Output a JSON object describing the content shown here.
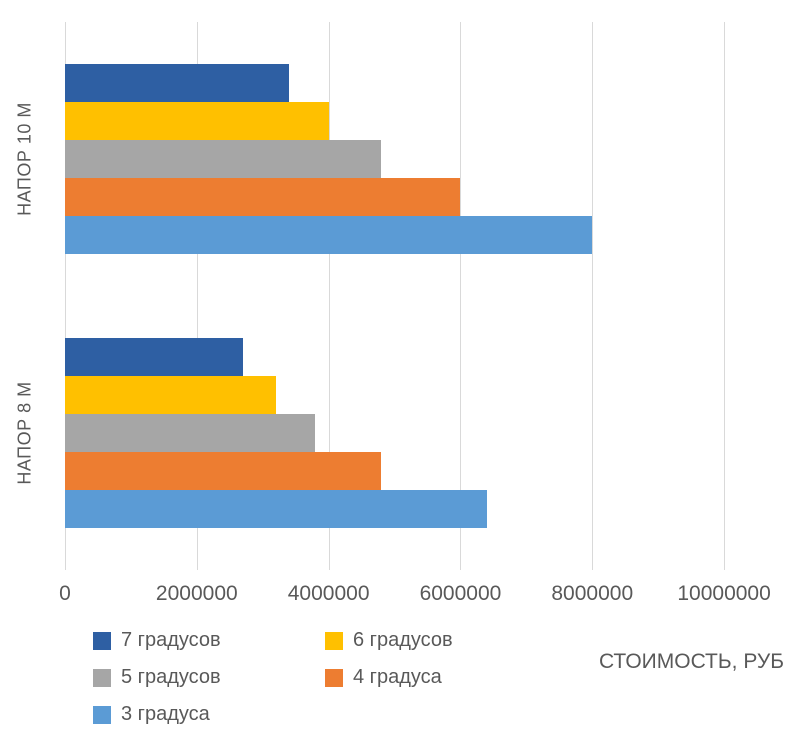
{
  "chart_data": {
    "type": "bar",
    "orientation": "horizontal",
    "title": "",
    "xlabel": "СТОИМОСТЬ, РУБ",
    "ylabel": "",
    "categories": [
      "НАПОР 10 М",
      "НАПОР 8 М"
    ],
    "series": [
      {
        "name": "7 градусов",
        "color": "#2e5fa3",
        "values": [
          3400000,
          2700000
        ]
      },
      {
        "name": "6 градусов",
        "color": "#ffc000",
        "values": [
          4000000,
          3200000
        ]
      },
      {
        "name": "5 градусов",
        "color": "#a6a6a6",
        "values": [
          4800000,
          3800000
        ]
      },
      {
        "name": "4 градуса",
        "color": "#ed7d31",
        "values": [
          6000000,
          4800000
        ]
      },
      {
        "name": "3 градуса",
        "color": "#5b9bd5",
        "values": [
          8000000,
          6400000
        ]
      }
    ],
    "xlim": [
      0,
      11000000
    ],
    "ticks": [
      0,
      2000000,
      4000000,
      6000000,
      8000000,
      10000000
    ],
    "tick_labels": [
      "0",
      "2000000",
      "4000000",
      "6000000",
      "8000000",
      "10000000"
    ],
    "grid": true,
    "legend_position": "bottom-left"
  },
  "colors": {
    "gridline": "#d9d9d9",
    "text": "#595959",
    "background": "#ffffff"
  }
}
